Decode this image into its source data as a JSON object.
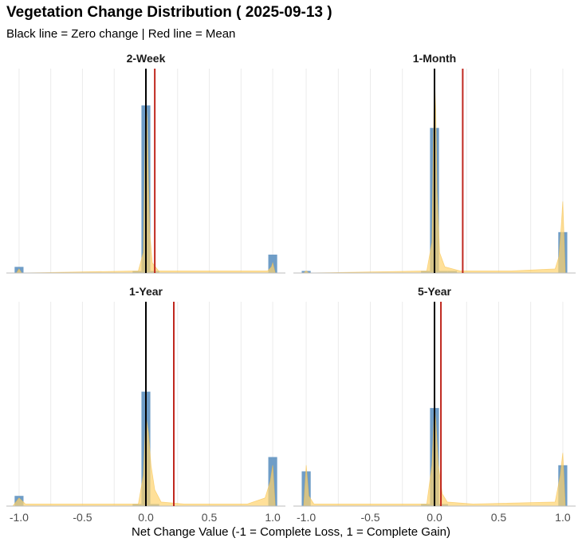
{
  "title": "Vegetation Change Distribution ( 2025-09-13 )",
  "subtitle": "Black line = Zero change | Red line = Mean",
  "colors": {
    "histogram": "#6f9dc7",
    "density": "#ffd36e",
    "zero_line": "#000000",
    "mean_line": "#c0281f",
    "grid": "#ebebeb",
    "axis": "#bdbdbd"
  },
  "chart_data": {
    "type": "histogram",
    "xlabel": "Net Change Value (-1 = Complete Loss, 1 = Complete Gain)",
    "ylabel": "",
    "xlim": [
      -1.1,
      1.1
    ],
    "x_ticks": [
      "-1.0",
      "-0.5",
      "0.0",
      "0.5",
      "1.0"
    ],
    "x_tick_values": [
      -1.0,
      -0.5,
      0.0,
      0.5,
      1.0
    ],
    "grid": true,
    "bin_width": 0.07,
    "panels": [
      {
        "label": "2-Week",
        "mean": 0.07,
        "bins": [
          {
            "x": -1.0,
            "y": 0.03
          },
          {
            "x": -0.07,
            "y": 0.01
          },
          {
            "x": 0.0,
            "y": 0.82
          },
          {
            "x": 0.07,
            "y": 0.01
          },
          {
            "x": 1.0,
            "y": 0.09
          }
        ],
        "density": [
          [
            -1.02,
            0.0
          ],
          [
            -1.0,
            0.02
          ],
          [
            -0.98,
            0.0
          ],
          [
            -0.06,
            0.01
          ],
          [
            -0.02,
            0.1
          ],
          [
            -0.01,
            0.5
          ],
          [
            0.0,
            0.85
          ],
          [
            0.01,
            0.75
          ],
          [
            0.02,
            0.45
          ],
          [
            0.03,
            0.2
          ],
          [
            0.05,
            0.05
          ],
          [
            0.1,
            0.01
          ],
          [
            0.96,
            0.01
          ],
          [
            0.99,
            0.03
          ],
          [
            1.0,
            0.05
          ],
          [
            1.02,
            0.0
          ]
        ]
      },
      {
        "label": "1-Month",
        "mean": 0.22,
        "bins": [
          {
            "x": -1.0,
            "y": 0.01
          },
          {
            "x": -0.07,
            "y": 0.01
          },
          {
            "x": 0.0,
            "y": 0.71
          },
          {
            "x": 0.07,
            "y": 0.01
          },
          {
            "x": 0.14,
            "y": 0.01
          },
          {
            "x": 1.0,
            "y": 0.2
          }
        ],
        "density": [
          [
            -1.02,
            0.0
          ],
          [
            -1.0,
            0.01
          ],
          [
            -0.98,
            0.0
          ],
          [
            -0.06,
            0.01
          ],
          [
            -0.02,
            0.15
          ],
          [
            -0.01,
            0.6
          ],
          [
            0.0,
            0.95
          ],
          [
            0.01,
            0.8
          ],
          [
            0.02,
            0.4
          ],
          [
            0.04,
            0.1
          ],
          [
            0.08,
            0.03
          ],
          [
            0.2,
            0.01
          ],
          [
            0.6,
            0.01
          ],
          [
            0.94,
            0.02
          ],
          [
            0.97,
            0.08
          ],
          [
            0.99,
            0.25
          ],
          [
            1.0,
            0.35
          ],
          [
            1.02,
            0.0
          ]
        ]
      },
      {
        "label": "1-Year",
        "mean": 0.22,
        "bins": [
          {
            "x": -1.0,
            "y": 0.05
          },
          {
            "x": -0.07,
            "y": 0.01
          },
          {
            "x": 0.0,
            "y": 0.56
          },
          {
            "x": 0.07,
            "y": 0.01
          },
          {
            "x": 1.0,
            "y": 0.24
          }
        ],
        "density": [
          [
            -1.05,
            0.0
          ],
          [
            -1.0,
            0.04
          ],
          [
            -0.95,
            0.01
          ],
          [
            -0.7,
            0.01
          ],
          [
            -0.06,
            0.01
          ],
          [
            -0.02,
            0.15
          ],
          [
            0.0,
            0.44
          ],
          [
            0.02,
            0.36
          ],
          [
            0.04,
            0.2
          ],
          [
            0.07,
            0.08
          ],
          [
            0.12,
            0.02
          ],
          [
            0.3,
            0.01
          ],
          [
            0.8,
            0.01
          ],
          [
            0.94,
            0.04
          ],
          [
            0.98,
            0.12
          ],
          [
            1.0,
            0.2
          ],
          [
            1.02,
            0.0
          ]
        ]
      },
      {
        "label": "5-Year",
        "mean": 0.05,
        "bins": [
          {
            "x": -1.0,
            "y": 0.17
          },
          {
            "x": -0.07,
            "y": 0.01
          },
          {
            "x": 0.0,
            "y": 0.48
          },
          {
            "x": 0.07,
            "y": 0.01
          },
          {
            "x": 1.0,
            "y": 0.2
          }
        ],
        "density": [
          [
            -1.02,
            0.0
          ],
          [
            -1.0,
            0.2
          ],
          [
            -0.98,
            0.05
          ],
          [
            -0.94,
            0.01
          ],
          [
            -0.06,
            0.01
          ],
          [
            -0.02,
            0.2
          ],
          [
            0.0,
            0.49
          ],
          [
            0.01,
            0.42
          ],
          [
            0.03,
            0.2
          ],
          [
            0.06,
            0.06
          ],
          [
            0.1,
            0.02
          ],
          [
            0.3,
            0.01
          ],
          [
            0.94,
            0.02
          ],
          [
            0.98,
            0.15
          ],
          [
            1.0,
            0.26
          ],
          [
            1.02,
            0.0
          ]
        ]
      }
    ]
  }
}
